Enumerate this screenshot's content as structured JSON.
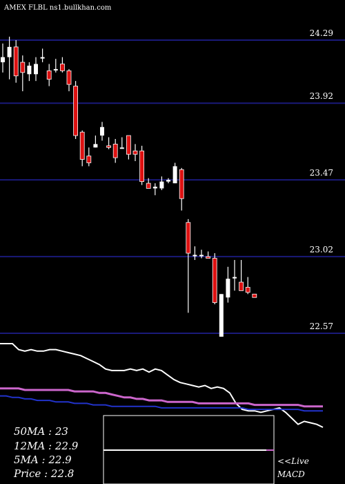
{
  "header": {
    "title": "AMEX  FLBL  ns1.bullkhan.com"
  },
  "chart_data": [
    {
      "type": "candlestick",
      "price_axis_ticks": [
        24.29,
        23.92,
        23.47,
        23.02,
        22.57
      ],
      "ylim": [
        22.57,
        24.29
      ],
      "grid": "horizontal",
      "candles": [
        {
          "o": 24.16,
          "h": 24.27,
          "l": 24.1,
          "c": 24.19
        },
        {
          "o": 24.19,
          "h": 24.31,
          "l": 24.06,
          "c": 24.25
        },
        {
          "o": 24.25,
          "h": 24.29,
          "l": 24.04,
          "c": 24.08
        },
        {
          "o": 24.16,
          "h": 24.2,
          "l": 23.99,
          "c": 24.1
        },
        {
          "o": 24.09,
          "h": 24.16,
          "l": 24.05,
          "c": 24.14
        },
        {
          "o": 24.09,
          "h": 24.19,
          "l": 24.05,
          "c": 24.15
        },
        {
          "o": 24.19,
          "h": 24.24,
          "l": 24.16,
          "c": 24.19
        },
        {
          "o": 24.11,
          "h": 24.15,
          "l": 24.02,
          "c": 24.06
        },
        {
          "o": 24.12,
          "h": 24.18,
          "l": 24.1,
          "c": 24.12
        },
        {
          "o": 24.15,
          "h": 24.19,
          "l": 24.1,
          "c": 24.11
        },
        {
          "o": 24.11,
          "h": 24.12,
          "l": 23.99,
          "c": 24.03
        },
        {
          "o": 24.02,
          "h": 24.05,
          "l": 23.71,
          "c": 23.73
        },
        {
          "o": 23.75,
          "h": 23.76,
          "l": 23.55,
          "c": 23.59
        },
        {
          "o": 23.61,
          "h": 23.66,
          "l": 23.55,
          "c": 23.57
        },
        {
          "o": 23.66,
          "h": 23.73,
          "l": 23.66,
          "c": 23.68
        },
        {
          "o": 23.73,
          "h": 23.81,
          "l": 23.7,
          "c": 23.78
        },
        {
          "o": 23.67,
          "h": 23.72,
          "l": 23.65,
          "c": 23.66
        },
        {
          "o": 23.68,
          "h": 23.71,
          "l": 23.57,
          "c": 23.6
        },
        {
          "o": 23.66,
          "h": 23.72,
          "l": 23.66,
          "c": 23.66
        },
        {
          "o": 23.73,
          "h": 23.73,
          "l": 23.59,
          "c": 23.62
        },
        {
          "o": 23.64,
          "h": 23.68,
          "l": 23.58,
          "c": 23.62
        },
        {
          "o": 23.64,
          "h": 23.67,
          "l": 23.44,
          "c": 23.46
        },
        {
          "o": 23.45,
          "h": 23.48,
          "l": 23.42,
          "c": 23.42
        },
        {
          "o": 23.42,
          "h": 23.45,
          "l": 23.38,
          "c": 23.43
        },
        {
          "o": 23.42,
          "h": 23.49,
          "l": 23.41,
          "c": 23.46
        },
        {
          "o": 23.46,
          "h": 23.48,
          "l": 23.45,
          "c": 23.47
        },
        {
          "o": 23.45,
          "h": 23.57,
          "l": 23.45,
          "c": 23.55
        },
        {
          "o": 23.53,
          "h": 23.54,
          "l": 23.29,
          "c": 23.36
        },
        {
          "o": 23.22,
          "h": 23.24,
          "l": 22.69,
          "c": 23.04
        },
        {
          "o": 23.03,
          "h": 23.08,
          "l": 23.0,
          "c": 23.03
        },
        {
          "o": 23.03,
          "h": 23.06,
          "l": 23.01,
          "c": 23.03
        },
        {
          "o": 23.02,
          "h": 23.05,
          "l": 23.01,
          "c": 23.01
        },
        {
          "o": 23.01,
          "h": 23.04,
          "l": 22.74,
          "c": 22.75
        },
        {
          "o": 22.55,
          "h": 22.8,
          "l": 22.55,
          "c": 22.8
        },
        {
          "o": 22.78,
          "h": 22.96,
          "l": 22.75,
          "c": 22.89
        },
        {
          "o": 22.9,
          "h": 23.0,
          "l": 22.82,
          "c": 22.9
        },
        {
          "o": 22.87,
          "h": 23.0,
          "l": 22.82,
          "c": 22.82
        },
        {
          "o": 22.84,
          "h": 22.9,
          "l": 22.8,
          "c": 22.81
        },
        {
          "o": 22.8,
          "h": 22.8,
          "l": 22.78,
          "c": 22.78
        }
      ]
    },
    {
      "type": "line",
      "name": "MACD panel",
      "series": [
        {
          "color": "#ffffff",
          "values": [
            22.9,
            22.9,
            22.9,
            22.86,
            22.85,
            22.86,
            22.85,
            22.85,
            22.86,
            22.86,
            22.85,
            22.84,
            22.83,
            22.82,
            22.8,
            22.78,
            22.76,
            22.73,
            22.72,
            22.72,
            22.72,
            22.73,
            22.72,
            22.73,
            22.71,
            22.73,
            22.72,
            22.69,
            22.66,
            22.64,
            22.63,
            22.62,
            22.61,
            22.62,
            22.6,
            22.61,
            22.6,
            22.57,
            22.5,
            22.46,
            22.45,
            22.45,
            22.44,
            22.45,
            22.46,
            22.47,
            22.44,
            22.4,
            22.36,
            22.38,
            22.37,
            22.36,
            22.34
          ]
        },
        {
          "color": "#cc66cc",
          "values": [
            22.6,
            22.6,
            22.6,
            22.6,
            22.59,
            22.59,
            22.59,
            22.59,
            22.59,
            22.59,
            22.59,
            22.59,
            22.58,
            22.58,
            22.58,
            22.58,
            22.57,
            22.57,
            22.56,
            22.55,
            22.54,
            22.54,
            22.53,
            22.53,
            22.52,
            22.52,
            22.52,
            22.51,
            22.51,
            22.51,
            22.51,
            22.51,
            22.5,
            22.5,
            22.5,
            22.5,
            22.5,
            22.5,
            22.5,
            22.5,
            22.5,
            22.49,
            22.49,
            22.49,
            22.49,
            22.49,
            22.49,
            22.49,
            22.49,
            22.48,
            22.48,
            22.48,
            22.48
          ]
        },
        {
          "color": "#2233cc",
          "values": [
            22.55,
            22.55,
            22.54,
            22.54,
            22.53,
            22.53,
            22.52,
            22.52,
            22.52,
            22.51,
            22.51,
            22.51,
            22.5,
            22.5,
            22.5,
            22.49,
            22.49,
            22.49,
            22.48,
            22.48,
            22.48,
            22.48,
            22.48,
            22.48,
            22.48,
            22.48,
            22.47,
            22.47,
            22.47,
            22.47,
            22.47,
            22.47,
            22.47,
            22.47,
            22.47,
            22.47,
            22.47,
            22.47,
            22.47,
            22.47,
            22.46,
            22.46,
            22.46,
            22.46,
            22.46,
            22.46,
            22.46,
            22.46,
            22.46,
            22.45,
            22.45,
            22.45,
            22.45
          ]
        }
      ]
    }
  ],
  "legend": {
    "ma50": "50MA : 23",
    "ma12": "12MA : 22.9",
    "ma5": "5MA : 22.9",
    "price": "Price   : 22.8",
    "live": "<<Live",
    "macd": "MACD"
  },
  "colors": {
    "grid": "#1a1a7a",
    "bull": "#ffffff",
    "bear": "#dd1111",
    "background": "#000000"
  }
}
